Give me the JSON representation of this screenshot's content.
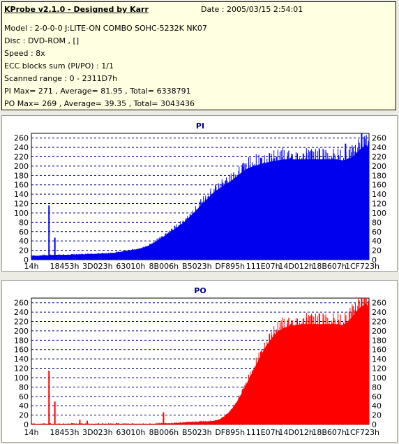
{
  "header": {
    "title": "KProbe v2.1.0 - Designed by Karr",
    "date": "Date : 2005/03/15 2:54:01",
    "lines": [
      "Model : 2-0-0-0 J:LITE-ON COMBO SOHC-5232K NK07",
      "Disc : DVD-ROM ,  []",
      "Speed : 8x",
      "ECC blocks sum (PI/PO) : 1/1",
      "Scanned range : 0 - 2311D7h",
      "PI Max= 271 , Average= 81.95 , Total= 6338791",
      "PO Max= 269 , Average= 39.35 , Total= 3043436"
    ]
  },
  "colors": {
    "pi": "#0000ee",
    "po": "#ff0000",
    "grid": "#000080",
    "background": "#ecebe4",
    "info_background": "#ffffe1"
  },
  "chart_data": [
    {
      "type": "area",
      "title": "PI",
      "color": "#0000ee",
      "ylim": [
        0,
        270
      ],
      "yticks": [
        0,
        20,
        40,
        60,
        80,
        100,
        120,
        140,
        160,
        180,
        200,
        220,
        240,
        260
      ],
      "xlim": [
        0,
        2300000
      ],
      "xticks": [
        "14h",
        "18453h",
        "3D023h",
        "63010h",
        "8B006h",
        "B5023h",
        "DF895h",
        "111E07h",
        "14D012h",
        "18B607h",
        "1CF723h"
      ],
      "grid": true,
      "legend": "none",
      "x": [
        0,
        40000,
        80000,
        120000,
        160000,
        200000,
        240000,
        280000,
        320000,
        360000,
        400000,
        440000,
        480000,
        520000,
        560000,
        600000,
        640000,
        680000,
        720000,
        760000,
        800000,
        840000,
        880000,
        920000,
        960000,
        1000000,
        1040000,
        1080000,
        1120000,
        1160000,
        1200000,
        1240000,
        1280000,
        1320000,
        1360000,
        1400000,
        1440000,
        1480000,
        1520000,
        1560000,
        1600000,
        1640000,
        1680000,
        1720000,
        1760000,
        1800000,
        1840000,
        1880000,
        1920000,
        1960000,
        2000000,
        2040000,
        2080000,
        2120000,
        2160000,
        2200000,
        2240000,
        2280000,
        2300000
      ],
      "values": [
        8,
        8,
        9,
        9,
        10,
        10,
        10,
        10,
        11,
        11,
        12,
        12,
        13,
        13,
        14,
        16,
        18,
        20,
        22,
        25,
        30,
        37,
        45,
        53,
        62,
        70,
        80,
        92,
        104,
        118,
        130,
        143,
        152,
        160,
        168,
        178,
        188,
        196,
        200,
        204,
        207,
        210,
        212,
        214,
        214,
        214,
        214,
        214,
        214,
        214,
        214,
        214,
        214,
        212,
        215,
        222,
        236,
        245,
        236
      ],
      "spikes": [
        {
          "x": 120000,
          "y": 116
        },
        {
          "x": 160000,
          "y": 47
        },
        {
          "x": 2140000,
          "y": 248
        },
        {
          "x": 2250000,
          "y": 271
        }
      ]
    },
    {
      "type": "area",
      "title": "PO",
      "color": "#ff0000",
      "ylim": [
        0,
        270
      ],
      "yticks": [
        0,
        20,
        40,
        60,
        80,
        100,
        120,
        140,
        160,
        180,
        200,
        220,
        240,
        260
      ],
      "xlim": [
        0,
        2300000
      ],
      "xticks": [
        "14h",
        "18453h",
        "3D023h",
        "63010h",
        "8B006h",
        "B5023h",
        "DF895h",
        "111E07h",
        "14D012h",
        "18B607h",
        "1CF723h"
      ],
      "grid": true,
      "legend": "none",
      "x": [
        0,
        40000,
        80000,
        120000,
        160000,
        200000,
        240000,
        280000,
        320000,
        360000,
        400000,
        440000,
        480000,
        520000,
        560000,
        600000,
        640000,
        680000,
        720000,
        760000,
        800000,
        840000,
        880000,
        920000,
        960000,
        1000000,
        1040000,
        1080000,
        1120000,
        1160000,
        1200000,
        1240000,
        1280000,
        1320000,
        1360000,
        1400000,
        1440000,
        1480000,
        1520000,
        1560000,
        1600000,
        1640000,
        1680000,
        1720000,
        1760000,
        1800000,
        1840000,
        1880000,
        1920000,
        1960000,
        2000000,
        2040000,
        2080000,
        2120000,
        2160000,
        2200000,
        2240000,
        2280000,
        2300000
      ],
      "values": [
        1,
        1,
        1,
        1,
        1,
        1,
        1,
        1,
        1,
        1,
        1,
        1,
        1,
        1,
        1,
        1,
        1,
        1,
        1,
        1,
        1,
        1,
        2,
        2,
        2,
        3,
        4,
        5,
        5,
        6,
        6,
        7,
        10,
        18,
        30,
        48,
        70,
        95,
        120,
        145,
        168,
        185,
        198,
        206,
        210,
        212,
        214,
        214,
        214,
        214,
        214,
        214,
        214,
        212,
        220,
        235,
        250,
        258,
        244
      ],
      "spikes": [
        {
          "x": 120000,
          "y": 115
        },
        {
          "x": 160000,
          "y": 49
        },
        {
          "x": 330000,
          "y": 10
        },
        {
          "x": 380000,
          "y": 8
        },
        {
          "x": 900000,
          "y": 26
        },
        {
          "x": 2250000,
          "y": 269
        }
      ]
    }
  ]
}
